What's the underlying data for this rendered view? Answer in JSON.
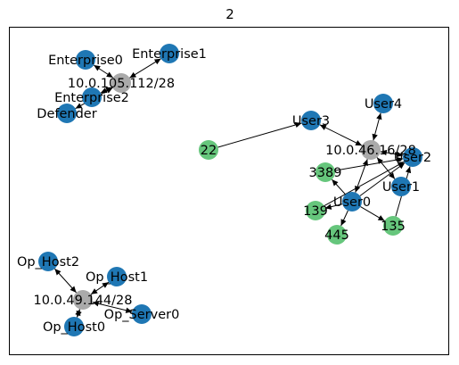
{
  "figure": {
    "title": "2"
  },
  "colors": {
    "host": "#1f77b4",
    "subnet": "#aaaaaa",
    "port": "#66c67c",
    "edge": "#000000",
    "frame": "#000000"
  },
  "nodes": [
    {
      "id": "subnet_ent",
      "label": "10.0.105.112/28",
      "kind": "subnet"
    },
    {
      "id": "enterprise0",
      "label": "Enterprise0",
      "kind": "host"
    },
    {
      "id": "enterprise1",
      "label": "Enterprise1",
      "kind": "host"
    },
    {
      "id": "enterprise2",
      "label": "Enterprise2",
      "kind": "host"
    },
    {
      "id": "defender",
      "label": "Defender",
      "kind": "host"
    },
    {
      "id": "subnet_user",
      "label": "10.0.46.16/28",
      "kind": "subnet"
    },
    {
      "id": "user0",
      "label": "User0",
      "kind": "host"
    },
    {
      "id": "user1",
      "label": "User1",
      "kind": "host"
    },
    {
      "id": "user2",
      "label": "User2",
      "kind": "host"
    },
    {
      "id": "user3",
      "label": "User3",
      "kind": "host"
    },
    {
      "id": "user4",
      "label": "User4",
      "kind": "host"
    },
    {
      "id": "port22",
      "label": "22",
      "kind": "port"
    },
    {
      "id": "port3389",
      "label": "3389",
      "kind": "port"
    },
    {
      "id": "port139",
      "label": "139",
      "kind": "port"
    },
    {
      "id": "port445",
      "label": "445",
      "kind": "port"
    },
    {
      "id": "port135",
      "label": "135",
      "kind": "port"
    },
    {
      "id": "subnet_op",
      "label": "10.0.49.144/28",
      "kind": "subnet"
    },
    {
      "id": "op_host0",
      "label": "Op_Host0",
      "kind": "host"
    },
    {
      "id": "op_host1",
      "label": "Op_Host1",
      "kind": "host"
    },
    {
      "id": "op_host2",
      "label": "Op_Host2",
      "kind": "host"
    },
    {
      "id": "op_server0",
      "label": "Op_Server0",
      "kind": "host"
    }
  ],
  "edges": [
    {
      "from": "subnet_ent",
      "to": "enterprise0",
      "both": true
    },
    {
      "from": "subnet_ent",
      "to": "enterprise1",
      "both": true
    },
    {
      "from": "subnet_ent",
      "to": "enterprise2",
      "both": true
    },
    {
      "from": "subnet_ent",
      "to": "defender",
      "both": true
    },
    {
      "from": "subnet_user",
      "to": "user0",
      "both": true
    },
    {
      "from": "subnet_user",
      "to": "user1",
      "both": true
    },
    {
      "from": "subnet_user",
      "to": "user2",
      "both": true
    },
    {
      "from": "subnet_user",
      "to": "user3",
      "both": true
    },
    {
      "from": "subnet_user",
      "to": "user4",
      "both": true
    },
    {
      "from": "port22",
      "to": "user3",
      "both": false
    },
    {
      "from": "port3389",
      "to": "user2",
      "both": false
    },
    {
      "from": "user0",
      "to": "port3389",
      "both": false
    },
    {
      "from": "user0",
      "to": "port139",
      "both": false
    },
    {
      "from": "user0",
      "to": "port445",
      "both": false
    },
    {
      "from": "user0",
      "to": "port135",
      "both": false
    },
    {
      "from": "user0",
      "to": "user2",
      "both": false
    },
    {
      "from": "port139",
      "to": "user2",
      "both": false
    },
    {
      "from": "port135",
      "to": "user2",
      "both": false
    },
    {
      "from": "subnet_op",
      "to": "op_host0",
      "both": true
    },
    {
      "from": "subnet_op",
      "to": "op_host1",
      "both": true
    },
    {
      "from": "subnet_op",
      "to": "op_host2",
      "both": true
    },
    {
      "from": "subnet_op",
      "to": "op_server0",
      "both": true
    }
  ]
}
